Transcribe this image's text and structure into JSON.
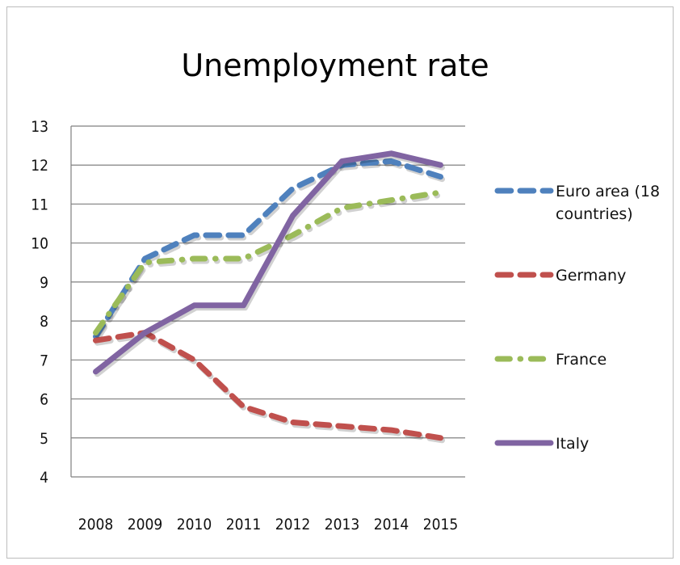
{
  "chart_data": {
    "type": "line",
    "title": "Unemployment rate",
    "xlabel": "",
    "ylabel": "",
    "x": [
      "2008",
      "2009",
      "2010",
      "2011",
      "2012",
      "2013",
      "2014",
      "2015"
    ],
    "ylim": [
      4,
      13
    ],
    "yticks": [
      "4",
      "5",
      "6",
      "7",
      "8",
      "9",
      "10",
      "11",
      "12",
      "13"
    ],
    "grid": true,
    "legend_position": "right",
    "series": [
      {
        "name": "Euro area (18 countries)",
        "legend_lines": [
          "Euro area (18",
          "countries)"
        ],
        "color": "#4f81bd",
        "dash": "dash",
        "values": [
          7.6,
          9.6,
          10.2,
          10.2,
          11.4,
          12.0,
          12.1,
          11.7
        ]
      },
      {
        "name": "Germany",
        "legend_lines": [
          "Germany"
        ],
        "color": "#c0504d",
        "dash": "dash",
        "values": [
          7.5,
          7.7,
          7.0,
          5.8,
          5.4,
          5.3,
          5.2,
          5.0
        ]
      },
      {
        "name": "France",
        "legend_lines": [
          "France"
        ],
        "color": "#9bbb59",
        "dash": "dashdot",
        "values": [
          7.7,
          9.5,
          9.6,
          9.6,
          10.2,
          10.9,
          11.1,
          11.3
        ]
      },
      {
        "name": "Italy",
        "legend_lines": [
          "Italy"
        ],
        "color": "#8064a2",
        "dash": "solid",
        "values": [
          6.7,
          7.7,
          8.4,
          8.4,
          10.7,
          12.1,
          12.3,
          12.0
        ]
      }
    ]
  }
}
